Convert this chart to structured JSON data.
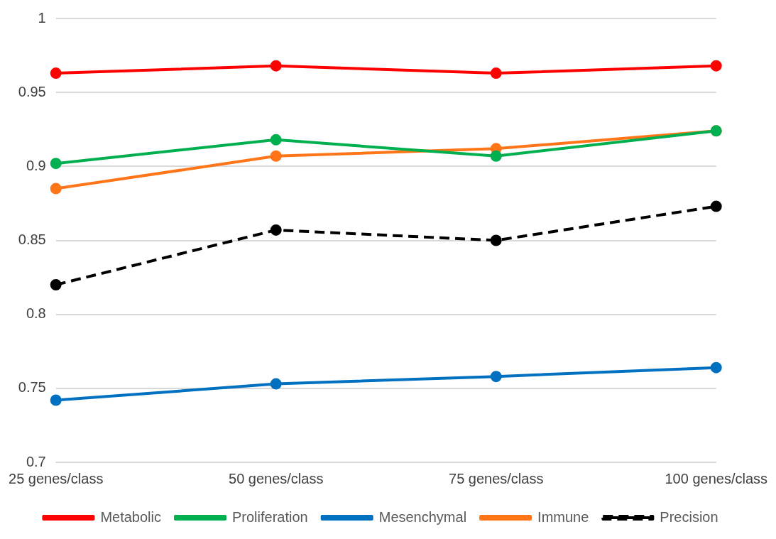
{
  "chart_data": {
    "type": "line",
    "categories": [
      "25 genes/class",
      "50 genes/class",
      "75 genes/class",
      "100 genes/class"
    ],
    "series": [
      {
        "name": "Metabolic",
        "color": "#ff0000",
        "values": [
          0.963,
          0.968,
          0.963,
          0.968
        ]
      },
      {
        "name": "Proliferation",
        "color": "#00b050",
        "values": [
          0.902,
          0.918,
          0.907,
          0.924
        ]
      },
      {
        "name": "Mesenchymal",
        "color": "#0070c0",
        "values": [
          0.742,
          0.753,
          0.758,
          0.764
        ]
      },
      {
        "name": "Immune",
        "color": "#ff7518",
        "values": [
          0.885,
          0.907,
          0.912,
          0.924
        ]
      },
      {
        "name": "Precision",
        "color": "#000000",
        "values": [
          0.82,
          0.857,
          0.85,
          0.873
        ],
        "line_style": "dashed"
      }
    ],
    "ylim": [
      0.7,
      1
    ],
    "yticks": [
      0.7,
      0.75,
      0.8,
      0.85,
      0.9,
      0.95,
      1
    ],
    "grid": "y",
    "legend": "bottom",
    "marker": "circle"
  }
}
